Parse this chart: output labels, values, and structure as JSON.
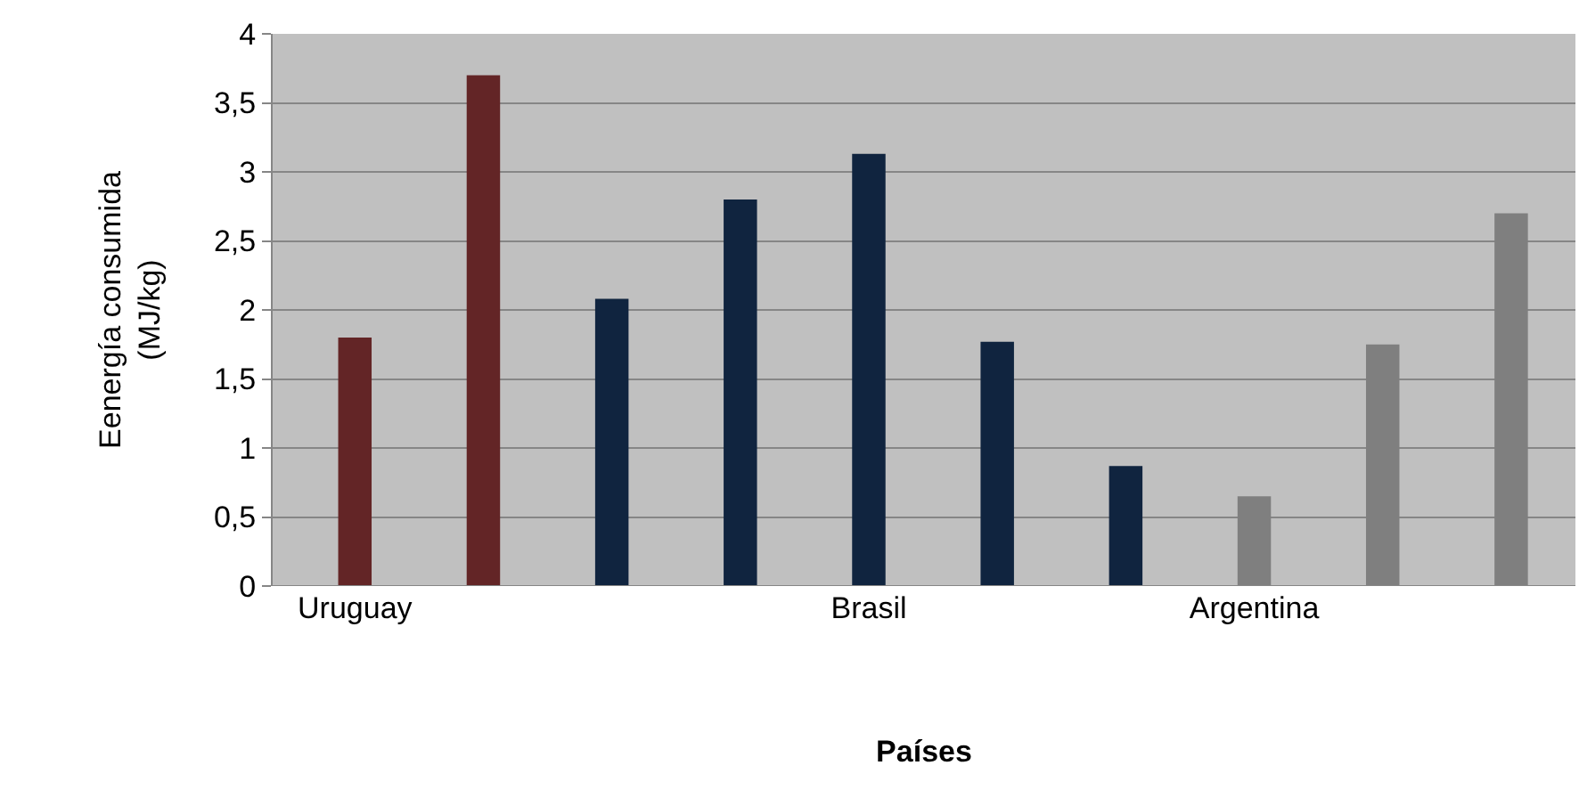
{
  "chart_data": {
    "type": "bar",
    "xlabel": "Países",
    "ylabel": "Eenergía consumida\n(MJ/kg)",
    "categories": [
      "Uruguay",
      null,
      null,
      null,
      "Brasil",
      null,
      null,
      "Argentina",
      null,
      null
    ],
    "values": [
      1.8,
      3.7,
      2.08,
      2.8,
      3.13,
      1.77,
      0.87,
      0.65,
      1.75,
      2.7
    ],
    "colors": [
      "#632526",
      "#632526",
      "#10243f",
      "#10243f",
      "#10243f",
      "#10243f",
      "#10243f",
      "#7f7f7f",
      "#7f7f7f",
      "#7f7f7f"
    ],
    "ylim": [
      0,
      4
    ],
    "yticks": [
      0,
      {
        "value": 0.5,
        "label": "0,5"
      },
      1,
      {
        "value": 1.5,
        "label": "1,5"
      },
      2,
      {
        "value": 2.5,
        "label": "2,5"
      },
      3,
      {
        "value": 3.5,
        "label": "3,5"
      },
      4
    ],
    "grid": "y"
  }
}
